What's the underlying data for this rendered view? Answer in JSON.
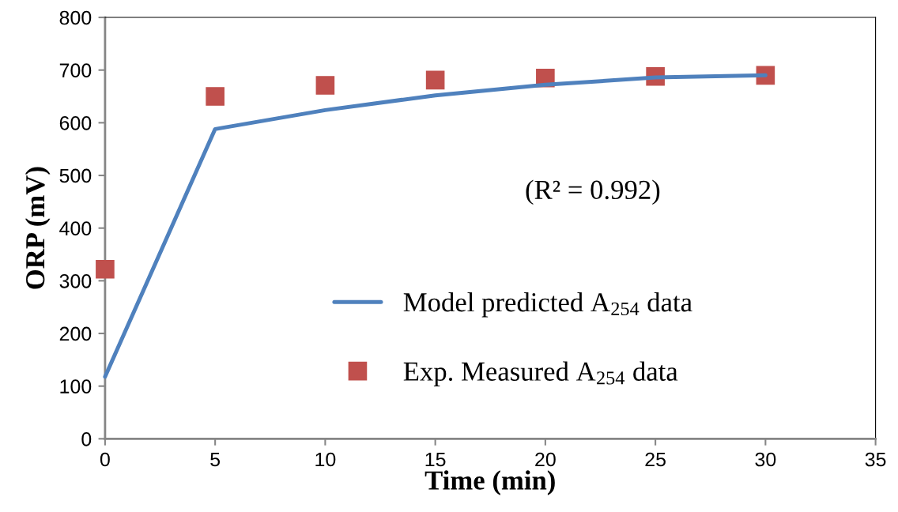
{
  "chart_data": {
    "type": "line",
    "xlabel": "Time (min)",
    "ylabel": "ORP (mV)",
    "annotations": [
      "(R² = 0.992)"
    ],
    "xlim": [
      0,
      35
    ],
    "xticks": [
      0,
      5,
      10,
      15,
      20,
      25,
      30,
      35
    ],
    "ylim": [
      0,
      800
    ],
    "yticks": [
      0,
      100,
      200,
      300,
      400,
      500,
      600,
      700,
      800
    ],
    "legend": "bottom",
    "series": [
      {
        "name": "Model predicted A$_{254}$ data",
        "color": "#4f81bd",
        "x": [
          0,
          5,
          10,
          15,
          20,
          25,
          30
        ],
        "values": [
          118,
          588,
          624,
          652,
          672,
          686,
          690
        ]
      },
      {
        "name": "Exp. Measured A$_{254}$ data",
        "type": "scatter",
        "marker": "square",
        "color": "#c0504d",
        "x": [
          0,
          5,
          10,
          15,
          20,
          25,
          30
        ],
        "values": [
          322,
          650,
          671,
          681,
          685,
          688,
          690
        ]
      }
    ]
  }
}
